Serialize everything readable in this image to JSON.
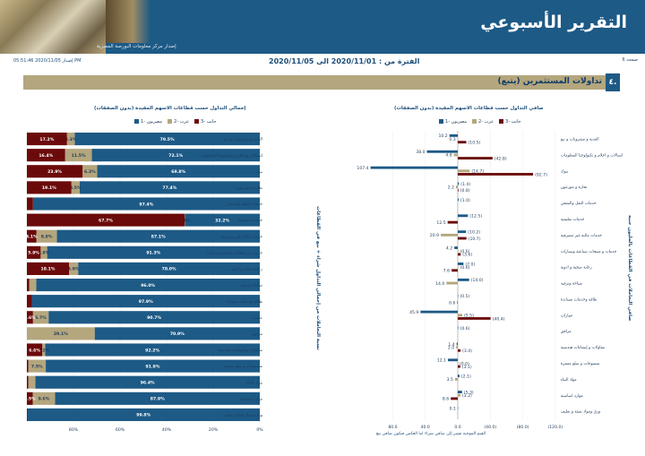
{
  "header": {
    "title": "التقرير الأسبوعي",
    "subtitle": "إصدار مركز معلومات البورصة المصرية",
    "page_label": "صفحة 6",
    "period": "الفترة من : 2020/11/01 الى 2020/11/05",
    "issued": "إصدار 2020/11/05 05:51:46 PM"
  },
  "section": {
    "number": "٤.",
    "title": "تداولات المستثمرين (يتبع)"
  },
  "colors": {
    "egyptians": "#1d5a86",
    "arabs": "#b4a67d",
    "foreigners": "#6b0a0a",
    "header": "#1d5a86"
  },
  "sectors": [
    "الغذية و مشروبات و تبغ",
    "اتصالات و اعلام و تكنولوجيا المعلومات",
    "بنوك",
    "تجارة و موزعون",
    "خدمات النقل والشحن",
    "خدمات تعليمية",
    "خدمات مالية غير مصرفية",
    "خدمات و منتجات صناعية وسيارات",
    "رعاية صحية و ادوية",
    "سياحة وترفيه",
    "طاقة وخدمات مساندة",
    "عقارات",
    "مرافق",
    "مقاولات و إنشاءات هندسية",
    "منسوجات و سلع معمرة",
    "مواد البناء",
    "موارد اساسية",
    "ورق ومواد تعبئة و تغليف"
  ],
  "chart_data": [
    {
      "type": "bar",
      "orientation": "horizontal-diverging",
      "title": "صافي التداول حسب قطاعات الاسهم المقيدة (بدون الصفقات)",
      "axis_title": "صافي التعاملات في القطاعات بالمليون جنيه",
      "footnote": "القيم الموجبة تشير إلى صافي شراء اما العكس فيكون صافي بيع",
      "xticks": [
        "80.0",
        "40.0",
        "0.0",
        "(40.0)",
        "(80.0)",
        "(120.0)"
      ],
      "xlim": [
        120,
        -120
      ],
      "series": [
        {
          "name": "مصريون -1",
          "values": [
            10.2,
            38.0,
            107.4,
            1.4,
            1.0,
            12.5,
            10.2,
            4.2,
            7.0,
            14.0,
            0.5,
            45.9,
            0.6,
            1.4,
            12.1,
            2.1,
            5.3,
            0.1
          ],
          "labels": [
            "10.2",
            "38.0",
            "107.4",
            "(1.4)",
            "(1.0)",
            "(12.5)",
            "(10.2)",
            "4.2",
            "(7.0)",
            "(14.0)",
            "(0.5)",
            "45.9",
            "(0.6)",
            "1.4",
            "12.1",
            "(2.1)",
            "(5.3)",
            "0.1"
          ]
        },
        {
          "name": "عرب -2",
          "values": [
            0.3,
            4.8,
            14.7,
            2.2,
            0,
            0,
            20.9,
            0.6,
            0.6,
            14.0,
            0,
            5.5,
            0,
            2.0,
            0.0,
            3.5,
            3.2,
            0
          ],
          "labels": [
            "0.3",
            "4.8",
            "(14.7)",
            "2.2",
            "",
            "",
            "20.9",
            "(0.6)",
            "(0.6)",
            "14.0",
            "",
            "(5.5)",
            "",
            "2.0",
            "(0.0)",
            "3.5",
            "(3.2)",
            ""
          ]
        },
        {
          "name": "جانب -3",
          "values": [
            10.5,
            42.8,
            92.7,
            0.8,
            0,
            12.5,
            10.7,
            3.6,
            7.6,
            0,
            0.6,
            40.4,
            0,
            3.4,
            3.1,
            0,
            8.6,
            0
          ],
          "labels": [
            "(10.5)",
            "(42.8)",
            "(92.7)",
            "(0.8)",
            "",
            "12.5",
            "(10.7)",
            "(3.6)",
            "7.6",
            "",
            "0.6",
            "(40.4)",
            "",
            "(3.4)",
            "(3.1)",
            "",
            "8.6",
            ""
          ]
        }
      ]
    },
    {
      "type": "bar",
      "orientation": "horizontal-stacked-percent",
      "title": "إجمالي التداول حسب قطاعات الاسهم المقيدة (بدون الصفقات)",
      "axis_title": "نسبة التعاملات من إجمالي التداول شراء + بيع في القطاعات",
      "xticks": [
        "80%",
        "60%",
        "40%",
        "20%",
        "0%"
      ],
      "xlim": [
        0,
        100
      ],
      "series": [
        {
          "name": "مصريون -1",
          "values": [
            79.5,
            72.1,
            69.8,
            77.4,
            97.4,
            32.2,
            87.1,
            91.3,
            78.0,
            96.0,
            97.9,
            90.7,
            70.9,
            92.2,
            91.9,
            96.4,
            87.9,
            99.8
          ],
          "labels": [
            "79.5%",
            "72.1%",
            "69.8%",
            "77.4%",
            "97.4%",
            "32.2%",
            "87.1%",
            "91.3%",
            "78.0%",
            "96.0%",
            "97.9%",
            "90.7%",
            "70.9%",
            "92.2%",
            "91.9%",
            "96.4%",
            "87.9%",
            "99.8%"
          ]
        },
        {
          "name": "عرب -2",
          "values": [
            3.3,
            11.5,
            6.3,
            3.5,
            0,
            0.1,
            8.8,
            2.8,
            3.9,
            3.0,
            0,
            6.7,
            29.1,
            1.2,
            7.5,
            3.0,
            9.6,
            0
          ],
          "labels": [
            "3.3%",
            "11.5%",
            "6.3%",
            "3.5%",
            "",
            "0.1%",
            "8.8%",
            "2.8%",
            "3.9%",
            "",
            "",
            "6.7%",
            "29.1%",
            "1.2%",
            "7.5%",
            "",
            "9.6%",
            ""
          ]
        },
        {
          "name": "جانب -3",
          "values": [
            17.2,
            16.4,
            23.9,
            19.1,
            2.6,
            67.7,
            4.1,
            5.9,
            18.1,
            1.0,
            2.1,
            2.6,
            0,
            6.6,
            0.6,
            0.6,
            2.5,
            0.2
          ],
          "labels": [
            "17.2%",
            "16.4%",
            "23.9%",
            "19.1%",
            "",
            "67.7%",
            "4.1%",
            "5.9%",
            "18.1%",
            "",
            "",
            "2.6%",
            "",
            "6.6%",
            "",
            "",
            "2.5%",
            ""
          ]
        }
      ]
    }
  ]
}
